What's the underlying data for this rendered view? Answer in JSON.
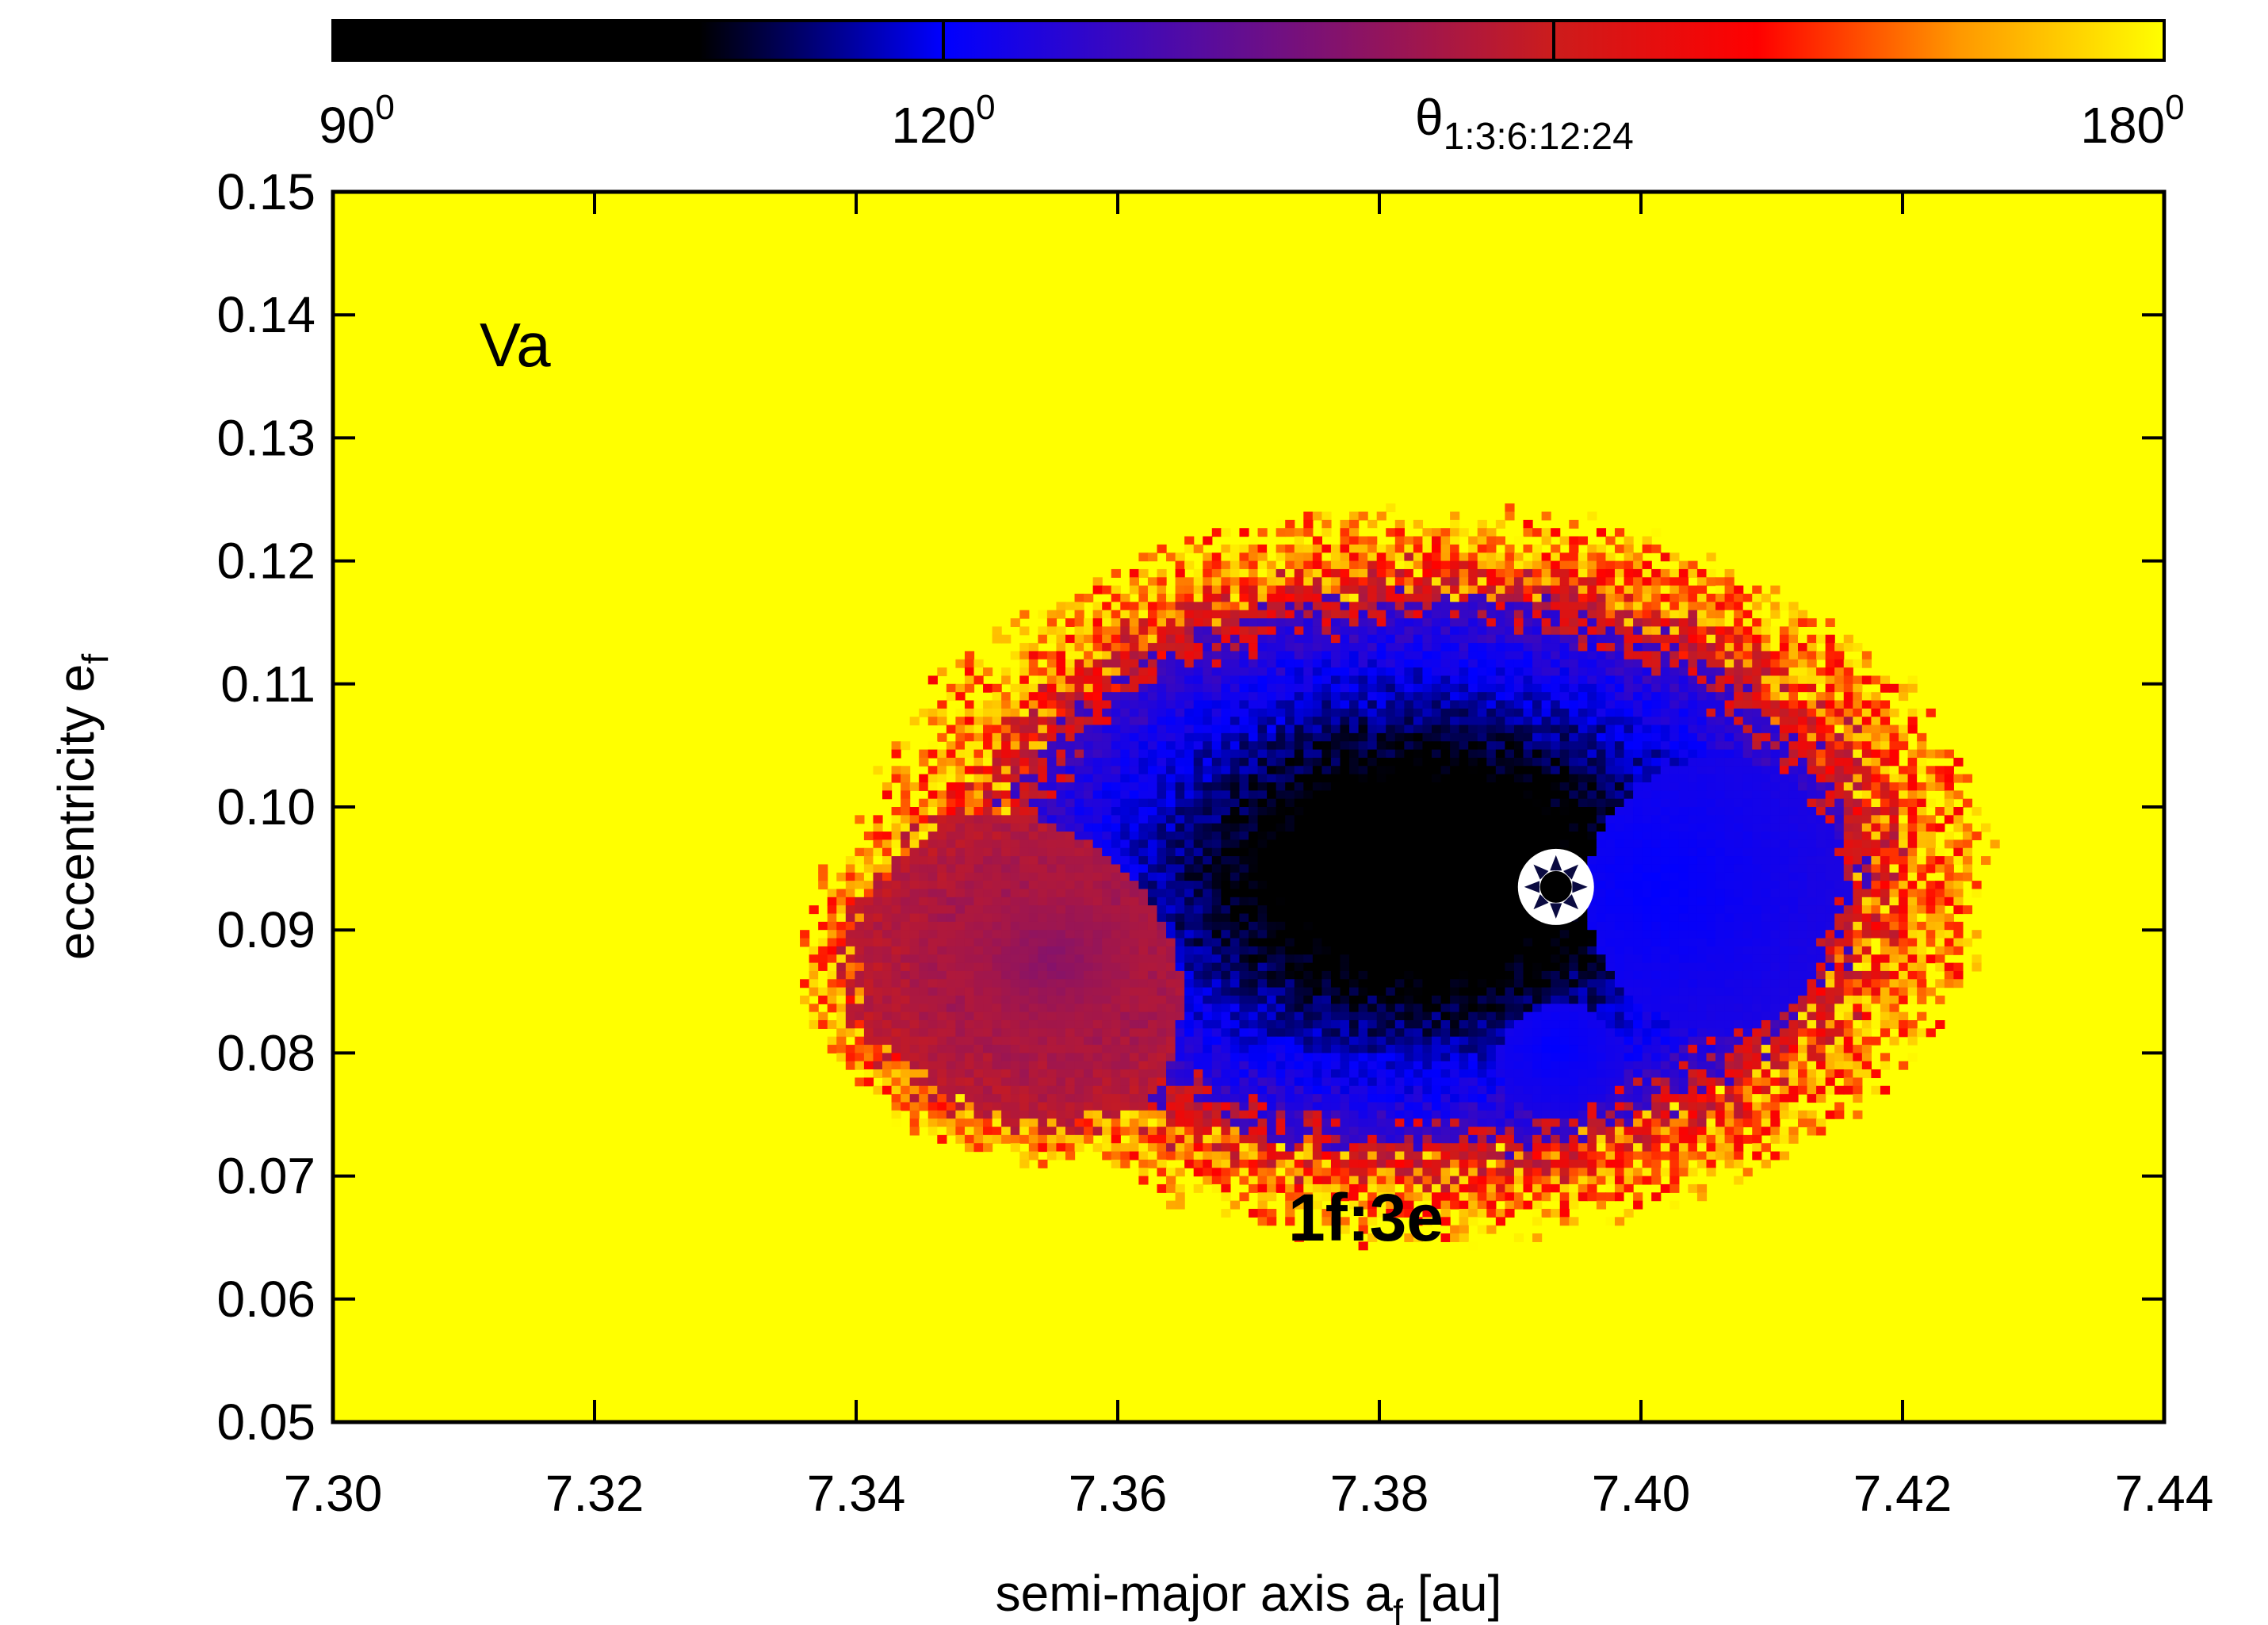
{
  "chart_data": {
    "type": "heatmap",
    "title": "",
    "xlabel": "semi-major axis a_f [au]",
    "xlabel_main": "semi-major axis a",
    "xlabel_sub": "f",
    "xlabel_tail": " [au]",
    "ylabel_main": "eccentricity e",
    "ylabel_sub": "f",
    "xlim": [
      7.3,
      7.44
    ],
    "ylim": [
      0.05,
      0.15
    ],
    "x_ticks": [
      7.3,
      7.32,
      7.34,
      7.36,
      7.38,
      7.4,
      7.42,
      7.44
    ],
    "x_tick_labels": [
      "7.30",
      "7.32",
      "7.34",
      "7.36",
      "7.38",
      "7.40",
      "7.42",
      "7.44"
    ],
    "y_ticks": [
      0.05,
      0.06,
      0.07,
      0.08,
      0.09,
      0.1,
      0.11,
      0.12,
      0.13,
      0.14,
      0.15
    ],
    "y_tick_labels": [
      "0.05",
      "0.06",
      "0.07",
      "0.08",
      "0.09",
      "0.10",
      "0.11",
      "0.12",
      "0.13",
      "0.14",
      "0.15"
    ],
    "panel_label": "Va",
    "resonance_label": "1f:3e",
    "background_value": 180,
    "background_color": "#ffff00",
    "colorbar": {
      "label_main": "θ",
      "label_sub": "1:3:6:12:24",
      "range": [
        90,
        180
      ],
      "ticks": [
        {
          "base": "90",
          "sup": "0"
        },
        {
          "base": "120",
          "sup": "0"
        },
        {
          "base": "180",
          "sup": "0"
        }
      ],
      "tick_values": [
        90,
        120,
        180
      ],
      "divider_values": [
        120,
        150
      ],
      "stops": [
        {
          "value": 90,
          "color": "#000000"
        },
        {
          "value": 108,
          "color": "#000000"
        },
        {
          "value": 120,
          "color": "#0000ff"
        },
        {
          "value": 150,
          "color": "#cc1c1c"
        },
        {
          "value": 160,
          "color": "#ff0000"
        },
        {
          "value": 170,
          "color": "#ff9900"
        },
        {
          "value": 180,
          "color": "#ffff00"
        }
      ]
    },
    "stable_regions": [
      {
        "name": "main-island",
        "center_a": 7.3835,
        "center_e": 0.0945,
        "half_width_a": 0.037,
        "half_width_e": 0.0255,
        "tilt": 0.35
      },
      {
        "name": "right-lobe",
        "center_a": 7.4015,
        "center_e": 0.0935,
        "half_width_a": 0.0165,
        "half_width_e": 0.016,
        "tilt": 0.25
      },
      {
        "name": "lower-tongue",
        "center_a": 7.3935,
        "center_e": 0.0805,
        "half_width_a": 0.0075,
        "half_width_e": 0.007,
        "tilt": 0.0
      },
      {
        "name": "left-red-tongue",
        "center_a": 7.355,
        "center_e": 0.0875,
        "half_width_a": 0.0165,
        "half_width_e": 0.014,
        "tilt": 0.55
      }
    ],
    "nominal_system": {
      "a": 7.3935,
      "e": 0.0935
    }
  }
}
